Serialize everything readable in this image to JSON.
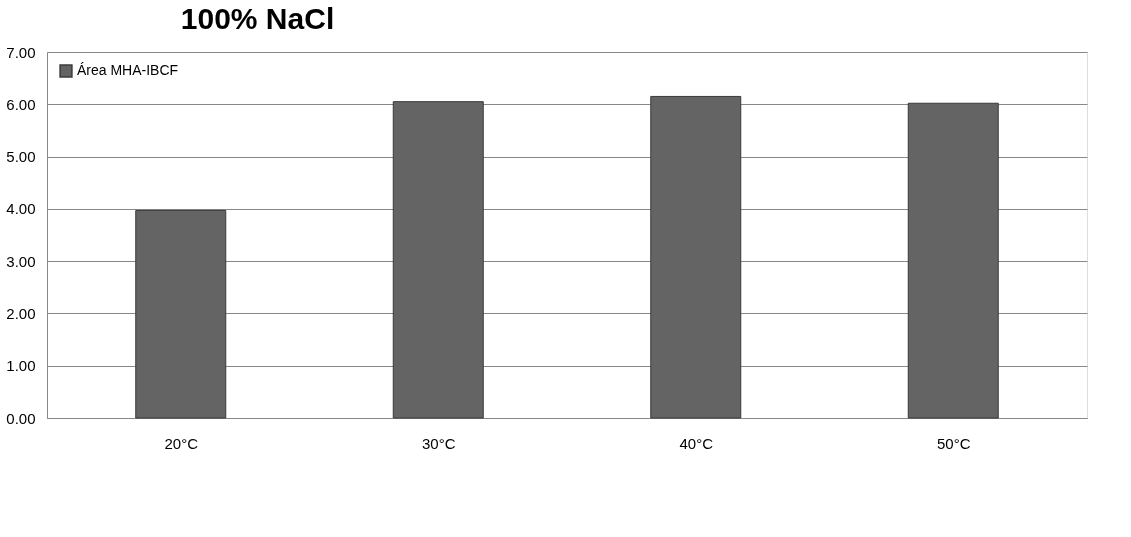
{
  "chart_data": {
    "type": "bar",
    "title": "100% NaCl",
    "categories": [
      "20°C",
      "30°C",
      "40°C",
      "50°C"
    ],
    "series": [
      {
        "name": "Área MHA-IBCF",
        "color": "#646464",
        "values": [
          3.97,
          6.05,
          6.15,
          6.02
        ]
      }
    ],
    "ylim": [
      0,
      7
    ],
    "yticks": [
      {
        "value": 0,
        "label": "0.00"
      },
      {
        "value": 1,
        "label": "1.00"
      },
      {
        "value": 2,
        "label": "2.00"
      },
      {
        "value": 3,
        "label": "3.00"
      },
      {
        "value": 4,
        "label": "4.00"
      },
      {
        "value": 5,
        "label": "5.00"
      },
      {
        "value": 6,
        "label": "6.00"
      },
      {
        "value": 7,
        "label": "7.00"
      }
    ],
    "grid": "y",
    "legend": "top left"
  }
}
